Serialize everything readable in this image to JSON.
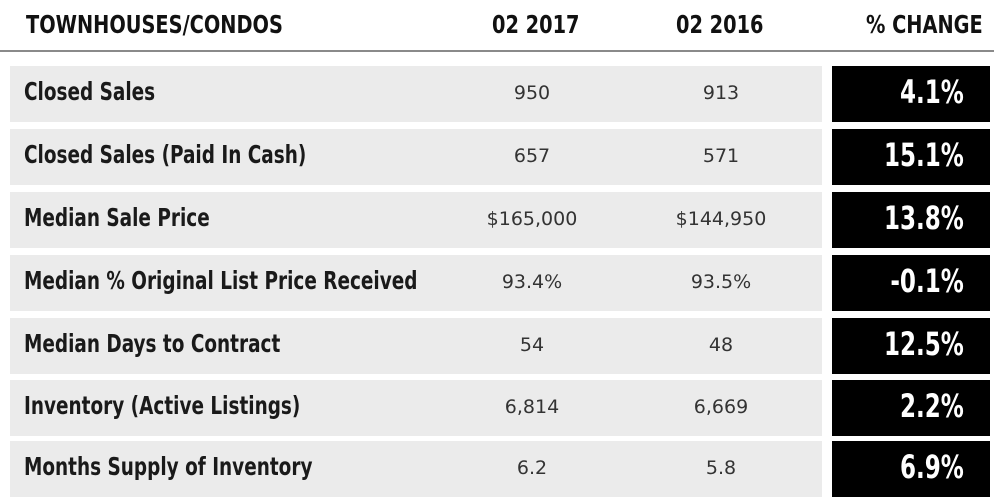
{
  "header": {
    "label": "TOWNHOUSES/CONDOS",
    "col1": "02 2017",
    "col2": "02 2016",
    "col3": "% CHANGE"
  },
  "rows": [
    {
      "label": "Closed Sales",
      "v2017": "950",
      "v2016": "913",
      "change": "4.1%"
    },
    {
      "label": "Closed Sales (Paid In Cash)",
      "v2017": "657",
      "v2016": "571",
      "change": "15.1%"
    },
    {
      "label": "Median Sale Price",
      "v2017": "$165,000",
      "v2016": "$144,950",
      "change": "13.8%"
    },
    {
      "label": "Median % Original List Price Received",
      "v2017": "93.4%",
      "v2016": "93.5%",
      "change": "-0.1%"
    },
    {
      "label": "Median Days to Contract",
      "v2017": "54",
      "v2016": "48",
      "change": "12.5%"
    },
    {
      "label": "Inventory (Active Listings)",
      "v2017": "6,814",
      "v2016": "6,669",
      "change": "2.2%"
    },
    {
      "label": "Months Supply of Inventory",
      "v2017": "6.2",
      "v2016": "5.8",
      "change": "6.9%"
    }
  ]
}
